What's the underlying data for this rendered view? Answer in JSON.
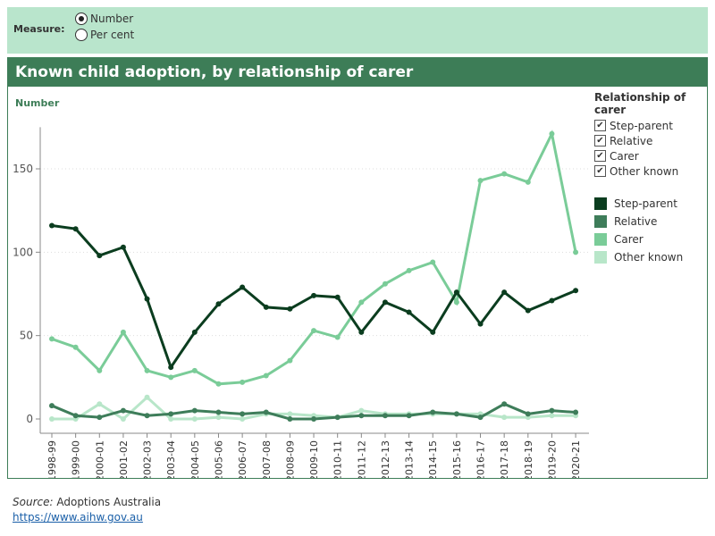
{
  "filter": {
    "label": "Measure:",
    "options": [
      "Number",
      "Per cent"
    ],
    "selected": "Number"
  },
  "panel": {
    "title": "Known child adoption, by relationship of carer"
  },
  "legend": {
    "title": "Relationship of carer",
    "items": [
      "Step-parent",
      "Relative",
      "Carer",
      "Other known"
    ]
  },
  "footer": {
    "source_label": "Source:",
    "source": "Adoptions Australia",
    "link": "https://www.aihw.gov.au"
  },
  "chart_data": {
    "type": "line",
    "ylabel": "Number",
    "ylim": [
      0,
      175
    ],
    "yticks": [
      0,
      50,
      100,
      150
    ],
    "grid": true,
    "legend": "right",
    "categories": [
      "1998-99",
      "1999-00",
      "2000-01",
      "2001-02",
      "2002-03",
      "2003-04",
      "2004-05",
      "2005-06",
      "2006-07",
      "2007-08",
      "2008-09",
      "2009-10",
      "2010-11",
      "2011-12",
      "2012-13",
      "2013-14",
      "2014-15",
      "2015-16",
      "2016-17",
      "2017-18",
      "2018-19",
      "2019-20",
      "2020-21"
    ],
    "series": [
      {
        "name": "Step-parent",
        "color": "#0b3d1f",
        "values": [
          116,
          114,
          98,
          103,
          72,
          31,
          52,
          69,
          79,
          67,
          66,
          74,
          73,
          52,
          70,
          64,
          52,
          76,
          57,
          76,
          65,
          71,
          77
        ]
      },
      {
        "name": "Relative",
        "color": "#3e7d5a",
        "values": [
          8,
          2,
          1,
          5,
          2,
          3,
          5,
          4,
          3,
          4,
          0,
          0,
          1,
          2,
          2,
          2,
          4,
          3,
          1,
          9,
          3,
          5,
          4
        ]
      },
      {
        "name": "Carer",
        "color": "#7acc98",
        "values": [
          48,
          43,
          29,
          52,
          29,
          25,
          29,
          21,
          22,
          26,
          35,
          53,
          49,
          70,
          81,
          89,
          94,
          70,
          143,
          147,
          142,
          171,
          100
        ]
      },
      {
        "name": "Other known",
        "color": "#b8e6c9",
        "values": [
          0,
          0,
          9,
          0,
          13,
          0,
          0,
          1,
          0,
          3,
          3,
          2,
          1,
          5,
          3,
          3,
          3,
          3,
          3,
          1,
          1,
          2,
          2
        ]
      }
    ]
  }
}
